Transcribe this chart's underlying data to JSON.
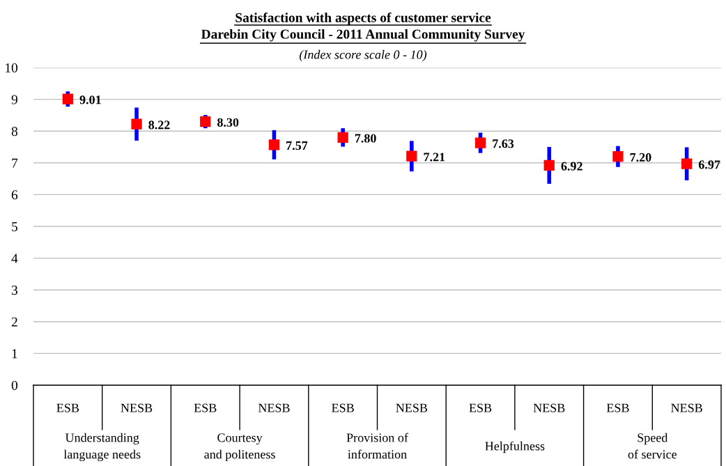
{
  "chart_data": {
    "type": "scatter",
    "title": "Satisfaction with aspects of customer service\nDarebin City Council - 2011 Annual Community Survey",
    "subtitle": "(Index score scale 0 - 10)",
    "categories": [
      "ESB",
      "NESB",
      "ESB",
      "NESB",
      "ESB",
      "NESB",
      "ESB",
      "NESB",
      "ESB",
      "NESB"
    ],
    "series": [
      {
        "color": "#ff0000",
        "values": [
          9.01,
          8.22,
          8.3,
          7.57,
          7.8,
          7.21,
          7.63,
          6.92,
          7.2,
          6.97
        ],
        "value_labels": [
          "9.01",
          "8.22",
          "8.30",
          "7.57",
          "7.80",
          "7.21",
          "7.63",
          "6.92",
          "7.20",
          "6.97"
        ],
        "errors": [
          0.24,
          0.52,
          0.21,
          0.46,
          0.29,
          0.48,
          0.32,
          0.58,
          0.33,
          0.52
        ]
      }
    ],
    "annotations": [
      "Understanding\nlanguage needs",
      "Courtesy\nand politeness",
      "Provision of\ninformation",
      "Helpfulness",
      "Speed\nof service"
    ],
    "ylim": [
      0,
      10
    ],
    "yticks": [
      0,
      1,
      2,
      3,
      4,
      5,
      6,
      7,
      8,
      9,
      10
    ],
    "grid": "y",
    "marker": "square"
  }
}
